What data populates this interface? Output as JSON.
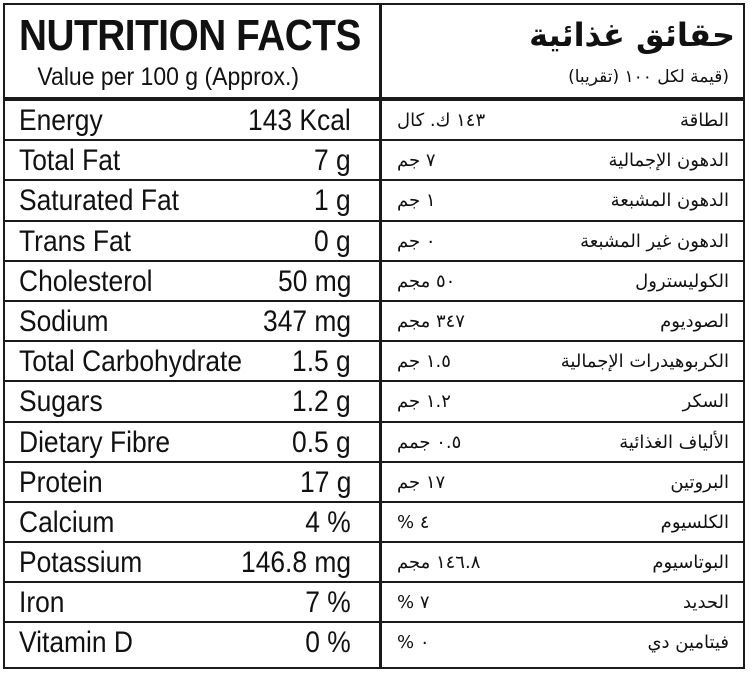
{
  "header": {
    "title_en": "NUTRITION FACTS",
    "subtitle_en": "Value per 100 g (Approx.)",
    "title_ar": "حقائق غذائية",
    "subtitle_ar": "(قيمة لكل ١٠٠ (تقريبا)"
  },
  "rows": [
    {
      "name_en": "Energy",
      "value_en": "143 Kcal",
      "value_ar": "١٤٣ ك. كال",
      "name_ar": "الطاقة"
    },
    {
      "name_en": "Total Fat",
      "value_en": "7 g",
      "value_ar": "٧ جم",
      "name_ar": "الدهون الإجمالية"
    },
    {
      "name_en": "Saturated Fat",
      "value_en": "1 g",
      "value_ar": "١ جم",
      "name_ar": "الدهون المشبعة"
    },
    {
      "name_en": "Trans Fat",
      "value_en": "0 g",
      "value_ar": "٠ جم",
      "name_ar": "الدهون غير المشبعة"
    },
    {
      "name_en": "Cholesterol",
      "value_en": "50 mg",
      "value_ar": "٥٠ مجم",
      "name_ar": "الكوليسترول"
    },
    {
      "name_en": "Sodium",
      "value_en": "347 mg",
      "value_ar": "٣٤٧ مجم",
      "name_ar": "الصوديوم"
    },
    {
      "name_en": "Total Carbohydrate",
      "value_en": "1.5 g",
      "value_ar": "١.٥ جم",
      "name_ar": "الكربوهيدرات الإجمالية"
    },
    {
      "name_en": "Sugars",
      "value_en": "1.2 g",
      "value_ar": "١.٢ جم",
      "name_ar": "السكر"
    },
    {
      "name_en": "Dietary Fibre",
      "value_en": "0.5 g",
      "value_ar": "٠.٥ جمم",
      "name_ar": "الألياف الغذائية"
    },
    {
      "name_en": "Protein",
      "value_en": "17 g",
      "value_ar": "١٧ جم",
      "name_ar": "البروتين"
    },
    {
      "name_en": "Calcium",
      "value_en": "4 %",
      "value_ar": "٤ %",
      "name_ar": "الكلسيوم"
    },
    {
      "name_en": "Potassium",
      "value_en": "146.8 mg",
      "value_ar": "١٤٦.٨ مجم",
      "name_ar": "البوتاسيوم"
    },
    {
      "name_en": "Iron",
      "value_en": "7 %",
      "value_ar": "٧ %",
      "name_ar": "الحديد"
    },
    {
      "name_en": "Vitamin D",
      "value_en": "0 %",
      "value_ar": "٠ %",
      "name_ar": "فيتامين دي"
    }
  ]
}
